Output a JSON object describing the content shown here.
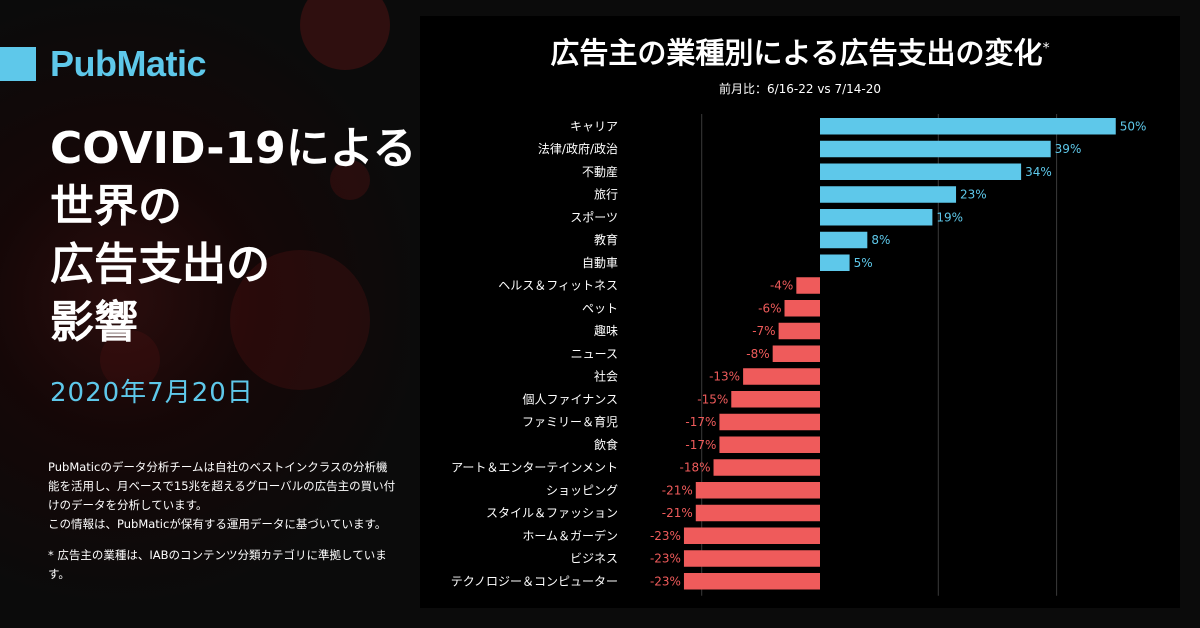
{
  "brand": {
    "name": "PubMatic",
    "accent_color": "#5ec8ea"
  },
  "headline": {
    "lines": [
      "COVID-19による",
      "世界の",
      "広告支出の",
      "影響"
    ],
    "date": "2020年7月20日"
  },
  "description": {
    "paragraph1": "PubMaticのデータ分析チームは自社のベストインクラスの分析機能を活用し、月ベースで15兆を超えるグローバルの広告主の買い付けのデータを分析しています。",
    "paragraph2": "この情報は、PubMaticが保有する運用データに基づいています。",
    "footnote": "* 広告主の業種は、IABのコンテンツ分類カテゴリに準拠しています。"
  },
  "chart_data": {
    "type": "bar",
    "orientation": "horizontal",
    "title": "広告主の業種別による広告支出の変化",
    "title_mark": "*",
    "subtitle": "前月比：6/16-22 vs 7/14-20",
    "categories": [
      "キャリア",
      "法律/政府/政治",
      "不動産",
      "旅行",
      "スポーツ",
      "教育",
      "自動車",
      "ヘルス＆フィットネス",
      "ペット",
      "趣味",
      "ニュース",
      "社会",
      "個人ファイナンス",
      "ファミリー＆育児",
      "飲食",
      "アート＆エンターテインメント",
      "ショッピング",
      "スタイル＆ファッション",
      "ホーム＆ガーデン",
      "ビジネス",
      "テクノロジー＆コンピューター"
    ],
    "values": [
      50,
      39,
      34,
      23,
      19,
      8,
      5,
      -4,
      -6,
      -7,
      -8,
      -13,
      -15,
      -17,
      -17,
      -18,
      -21,
      -21,
      -23,
      -23,
      -23
    ],
    "value_suffix": "%",
    "xlim": [
      -30,
      50
    ],
    "gridlines": [
      -20,
      20,
      40
    ],
    "positive_color": "#5ec8ea",
    "negative_color": "#ef5b5b",
    "grid": true
  }
}
